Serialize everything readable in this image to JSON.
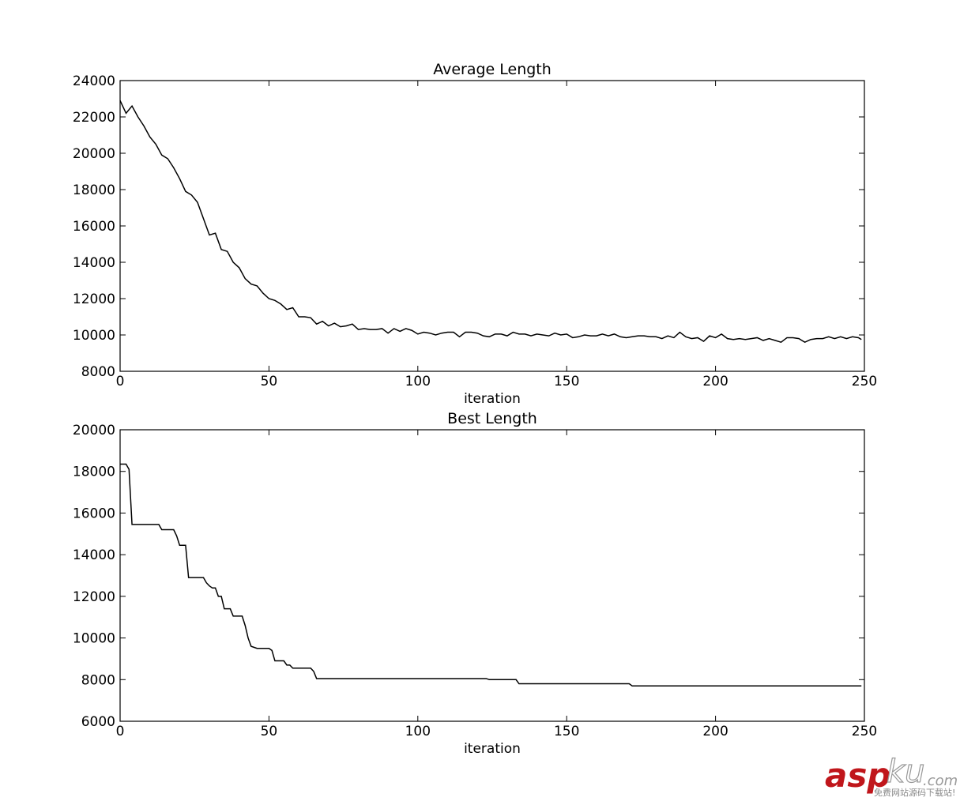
{
  "chart_data": [
    {
      "type": "line",
      "title": "Average Length",
      "xlabel": "iteration",
      "color": "#000000",
      "xlim": [
        0,
        250
      ],
      "ylim": [
        8000,
        24000
      ],
      "xticks": [
        0,
        50,
        100,
        150,
        200,
        250
      ],
      "yticks": [
        8000,
        10000,
        12000,
        14000,
        16000,
        18000,
        20000,
        22000,
        24000
      ],
      "x": [
        0,
        2,
        4,
        6,
        8,
        10,
        12,
        14,
        16,
        18,
        20,
        22,
        24,
        26,
        28,
        30,
        32,
        34,
        36,
        38,
        40,
        42,
        44,
        46,
        48,
        50,
        52,
        54,
        56,
        58,
        60,
        62,
        64,
        66,
        68,
        70,
        72,
        74,
        76,
        78,
        80,
        82,
        84,
        86,
        88,
        90,
        92,
        94,
        96,
        98,
        100,
        102,
        104,
        106,
        108,
        110,
        112,
        114,
        116,
        118,
        120,
        122,
        124,
        126,
        128,
        130,
        132,
        134,
        136,
        138,
        140,
        142,
        144,
        146,
        148,
        150,
        152,
        154,
        156,
        158,
        160,
        162,
        164,
        166,
        168,
        170,
        172,
        174,
        176,
        178,
        180,
        182,
        184,
        186,
        188,
        190,
        192,
        194,
        196,
        198,
        200,
        202,
        204,
        206,
        208,
        210,
        212,
        214,
        216,
        218,
        220,
        222,
        224,
        226,
        228,
        230,
        232,
        234,
        236,
        238,
        240,
        242,
        244,
        246,
        248,
        249
      ],
      "values": [
        22900,
        22200,
        22600,
        22000,
        21500,
        20900,
        20500,
        19900,
        19700,
        19200,
        18600,
        17900,
        17700,
        17300,
        16400,
        15500,
        15600,
        14700,
        14600,
        14000,
        13700,
        13100,
        12800,
        12700,
        12300,
        12000,
        11900,
        11700,
        11400,
        11500,
        11000,
        11000,
        10950,
        10600,
        10750,
        10500,
        10650,
        10450,
        10500,
        10600,
        10300,
        10350,
        10300,
        10300,
        10350,
        10100,
        10350,
        10200,
        10350,
        10250,
        10050,
        10150,
        10100,
        10000,
        10100,
        10150,
        10150,
        9900,
        10150,
        10150,
        10100,
        9950,
        9900,
        10050,
        10050,
        9950,
        10150,
        10050,
        10050,
        9950,
        10050,
        10000,
        9950,
        10100,
        10000,
        10050,
        9850,
        9900,
        10000,
        9950,
        9950,
        10050,
        9950,
        10050,
        9900,
        9850,
        9900,
        9950,
        9950,
        9900,
        9900,
        9800,
        9950,
        9850,
        10150,
        9900,
        9800,
        9850,
        9650,
        9950,
        9850,
        10050,
        9800,
        9750,
        9800,
        9750,
        9800,
        9850,
        9700,
        9800,
        9700,
        9600,
        9850,
        9850,
        9800,
        9600,
        9750,
        9800,
        9800,
        9900,
        9800,
        9900,
        9800,
        9900,
        9850,
        9750
      ]
    },
    {
      "type": "line",
      "title": "Best Length",
      "xlabel": "iteration",
      "color": "#000000",
      "xlim": [
        0,
        250
      ],
      "ylim": [
        6000,
        20000
      ],
      "xticks": [
        0,
        50,
        100,
        150,
        200,
        250
      ],
      "yticks": [
        6000,
        8000,
        10000,
        12000,
        14000,
        16000,
        18000,
        20000
      ],
      "x": [
        0,
        2,
        3,
        4,
        13,
        14,
        18,
        19,
        20,
        22,
        23,
        28,
        29,
        30,
        31,
        32,
        33,
        34,
        35,
        37,
        38,
        41,
        42,
        43,
        44,
        46,
        50,
        51,
        52,
        55,
        56,
        57,
        58,
        64,
        65,
        66,
        123,
        124,
        133,
        134,
        171,
        172,
        249
      ],
      "values": [
        18350,
        18350,
        18100,
        15450,
        15450,
        15200,
        15200,
        14900,
        14450,
        14450,
        12900,
        12900,
        12650,
        12500,
        12400,
        12400,
        12000,
        12000,
        11400,
        11400,
        11050,
        11050,
        10600,
        10000,
        9600,
        9500,
        9500,
        9400,
        8900,
        8900,
        8700,
        8700,
        8550,
        8550,
        8400,
        8050,
        8050,
        8000,
        8000,
        7800,
        7800,
        7700,
        7700
      ]
    }
  ],
  "watermark": {
    "brand": "asp",
    "brand2": "ku",
    "suffix": ".com",
    "tagline": "免费网站源码下载站!"
  }
}
